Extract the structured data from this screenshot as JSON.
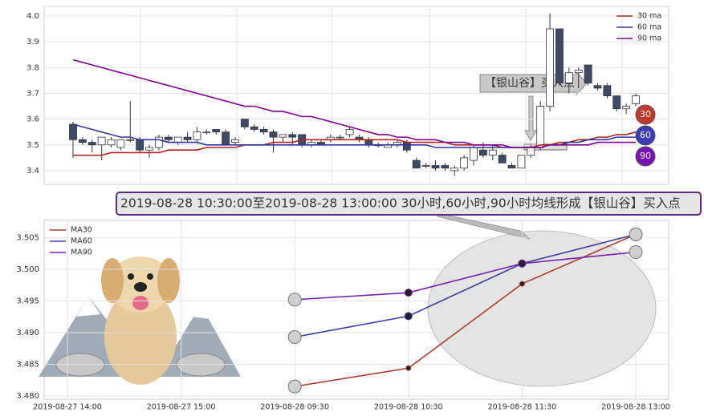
{
  "chart_data": [
    {
      "type": "candlestick",
      "categories": [
        null,
        null,
        null,
        null,
        null,
        null,
        null,
        null,
        null,
        null,
        null,
        null,
        null,
        null,
        null,
        null,
        null,
        null,
        null,
        null,
        null,
        null,
        null,
        null,
        null,
        null,
        null,
        null,
        null,
        null,
        null,
        null,
        null,
        null,
        null,
        null,
        null,
        null,
        null,
        null,
        null,
        null,
        null,
        null,
        null,
        null,
        null,
        null,
        null,
        null,
        null,
        null,
        null,
        null,
        null,
        null,
        null,
        null,
        null,
        null
      ],
      "open": [
        3.58,
        3.52,
        3.51,
        3.5,
        3.5,
        3.49,
        3.52,
        3.52,
        3.48,
        3.49,
        3.53,
        3.51,
        3.53,
        3.52,
        3.55,
        3.56,
        3.55,
        3.51,
        3.6,
        3.57,
        3.56,
        3.55,
        3.53,
        3.54,
        3.54,
        3.5,
        3.51,
        3.52,
        3.53,
        3.54,
        3.53,
        3.52,
        3.5,
        3.49,
        3.5,
        3.51,
        3.44,
        3.42,
        3.42,
        3.42,
        3.4,
        3.41,
        3.44,
        3.48,
        3.46,
        3.46,
        3.42,
        3.41,
        3.46,
        3.49,
        3.65,
        3.95,
        3.74,
        3.78,
        3.81,
        3.73,
        3.73,
        3.69,
        3.64,
        3.66
      ],
      "high": [
        3.59,
        3.53,
        3.52,
        3.53,
        3.53,
        3.52,
        3.67,
        3.53,
        3.5,
        3.54,
        3.54,
        3.53,
        3.55,
        3.57,
        3.56,
        3.56,
        3.56,
        3.53,
        3.6,
        3.58,
        3.57,
        3.56,
        3.54,
        3.55,
        3.54,
        3.52,
        3.52,
        3.54,
        3.54,
        3.57,
        3.54,
        3.53,
        3.51,
        3.51,
        3.52,
        3.52,
        3.45,
        3.43,
        3.44,
        3.43,
        3.42,
        3.46,
        3.5,
        3.51,
        3.5,
        3.47,
        3.43,
        3.46,
        3.5,
        3.67,
        4.01,
        3.95,
        3.8,
        3.8,
        3.81,
        3.74,
        3.74,
        3.69,
        3.66,
        3.7
      ],
      "low": [
        3.45,
        3.5,
        3.47,
        3.44,
        3.49,
        3.48,
        3.51,
        3.47,
        3.45,
        3.48,
        3.51,
        3.5,
        3.51,
        3.51,
        3.54,
        3.54,
        3.5,
        3.5,
        3.56,
        3.55,
        3.54,
        3.47,
        3.51,
        3.5,
        3.49,
        3.49,
        3.5,
        3.51,
        3.52,
        3.53,
        3.51,
        3.49,
        3.49,
        3.49,
        3.49,
        3.47,
        3.41,
        3.41,
        3.4,
        3.4,
        3.38,
        3.4,
        3.42,
        3.45,
        3.44,
        3.43,
        3.41,
        3.41,
        3.45,
        3.48,
        3.63,
        3.73,
        3.7,
        3.72,
        3.73,
        3.71,
        3.68,
        3.63,
        3.62,
        3.65
      ],
      "close": [
        3.52,
        3.51,
        3.5,
        3.53,
        3.52,
        3.52,
        3.52,
        3.48,
        3.49,
        3.53,
        3.52,
        3.53,
        3.52,
        3.55,
        3.55,
        3.55,
        3.5,
        3.52,
        3.57,
        3.56,
        3.55,
        3.53,
        3.54,
        3.53,
        3.5,
        3.51,
        3.5,
        3.53,
        3.53,
        3.56,
        3.52,
        3.5,
        3.5,
        3.5,
        3.51,
        3.48,
        3.41,
        3.42,
        3.41,
        3.41,
        3.41,
        3.45,
        3.49,
        3.46,
        3.48,
        3.43,
        3.41,
        3.46,
        3.49,
        3.65,
        3.95,
        3.74,
        3.78,
        3.79,
        3.74,
        3.72,
        3.69,
        3.64,
        3.65,
        3.69
      ],
      "series": [
        {
          "name": "30 ma",
          "color": "#b22222",
          "values": [
            3.46,
            3.46,
            3.46,
            3.46,
            3.47,
            3.47,
            3.47,
            3.47,
            3.47,
            3.47,
            3.48,
            3.48,
            3.48,
            3.48,
            3.49,
            3.49,
            3.49,
            3.49,
            3.5,
            3.5,
            3.5,
            3.51,
            3.51,
            3.51,
            3.52,
            3.52,
            3.52,
            3.52,
            3.52,
            3.52,
            3.52,
            3.52,
            3.52,
            3.52,
            3.52,
            3.51,
            3.51,
            3.51,
            3.51,
            3.51,
            3.5,
            3.5,
            3.5,
            3.5,
            3.5,
            3.49,
            3.49,
            3.49,
            3.49,
            3.5,
            3.5,
            3.51,
            3.51,
            3.52,
            3.52,
            3.53,
            3.53,
            3.54,
            3.54,
            3.55
          ]
        },
        {
          "name": "60 ma",
          "color": "#3333a0",
          "values": [
            3.58,
            3.57,
            3.56,
            3.55,
            3.54,
            3.53,
            3.53,
            3.52,
            3.52,
            3.52,
            3.51,
            3.51,
            3.51,
            3.51,
            3.5,
            3.5,
            3.5,
            3.5,
            3.5,
            3.5,
            3.5,
            3.5,
            3.5,
            3.5,
            3.5,
            3.5,
            3.5,
            3.5,
            3.5,
            3.5,
            3.5,
            3.5,
            3.5,
            3.5,
            3.5,
            3.5,
            3.5,
            3.5,
            3.49,
            3.49,
            3.49,
            3.49,
            3.49,
            3.49,
            3.49,
            3.49,
            3.49,
            3.49,
            3.49,
            3.49,
            3.5,
            3.5,
            3.51,
            3.51,
            3.52,
            3.52,
            3.52,
            3.53,
            3.53,
            3.53
          ]
        },
        {
          "name": "90 ma",
          "color": "#800090",
          "values": [
            3.83,
            3.82,
            3.81,
            3.8,
            3.79,
            3.78,
            3.77,
            3.76,
            3.75,
            3.74,
            3.73,
            3.72,
            3.71,
            3.7,
            3.69,
            3.68,
            3.67,
            3.66,
            3.65,
            3.65,
            3.64,
            3.63,
            3.63,
            3.62,
            3.61,
            3.61,
            3.6,
            3.59,
            3.58,
            3.57,
            3.56,
            3.55,
            3.54,
            3.54,
            3.53,
            3.53,
            3.52,
            3.52,
            3.52,
            3.51,
            3.51,
            3.51,
            3.5,
            3.5,
            3.5,
            3.5,
            3.49,
            3.49,
            3.49,
            3.49,
            3.5,
            3.5,
            3.5,
            3.5,
            3.5,
            3.51,
            3.51,
            3.51,
            3.51,
            3.51
          ]
        }
      ],
      "ylim": [
        3.347,
        4.037
      ],
      "yticks": [
        3.4,
        3.5,
        3.6,
        3.7,
        3.8,
        3.9,
        {
          "value": 4.0,
          "label": "4.0"
        }
      ],
      "grid": true,
      "legend": "upper right",
      "annotation": "【银山谷】买入点",
      "markers": [
        {
          "label": "30",
          "color": "#c0392b"
        },
        {
          "label": "60",
          "color": "#3b3bb5"
        },
        {
          "label": "90",
          "color": "#7b10b8"
        }
      ]
    },
    {
      "type": "line",
      "title": "2019-08-28 10:30:00至2019-08-28 13:00:00 30小时,60小时,90小时均线形成【银山谷】买入点",
      "categories": [
        "2019-08-27 14:00",
        "2019-08-27 15:00",
        "2019-08-28 09:30",
        "2019-08-28 10:30",
        "2019-08-28 11:30",
        "2019-08-28 13:00"
      ],
      "series": [
        {
          "name": "MA30",
          "color": "#b03a2e",
          "values": [
            null,
            null,
            3.4815,
            3.4844,
            3.4977,
            3.5055
          ]
        },
        {
          "name": "MA60",
          "color": "#3a3aa0",
          "values": [
            null,
            null,
            3.4893,
            3.4926,
            3.5009,
            3.5055
          ]
        },
        {
          "name": "MA90",
          "color": "#7a1fb0",
          "values": [
            null,
            null,
            3.4952,
            3.4963,
            3.5009,
            3.5027
          ]
        }
      ],
      "ylim": [
        3.4795,
        3.5077
      ],
      "yticks": [
        {
          "value": 3.48,
          "label": "3.480"
        },
        3.485,
        {
          "value": 3.49,
          "label": "3.490"
        },
        3.495,
        {
          "value": 3.5,
          "label": "3.500"
        },
        3.505
      ],
      "grid": true,
      "legend": "upper left"
    }
  ]
}
